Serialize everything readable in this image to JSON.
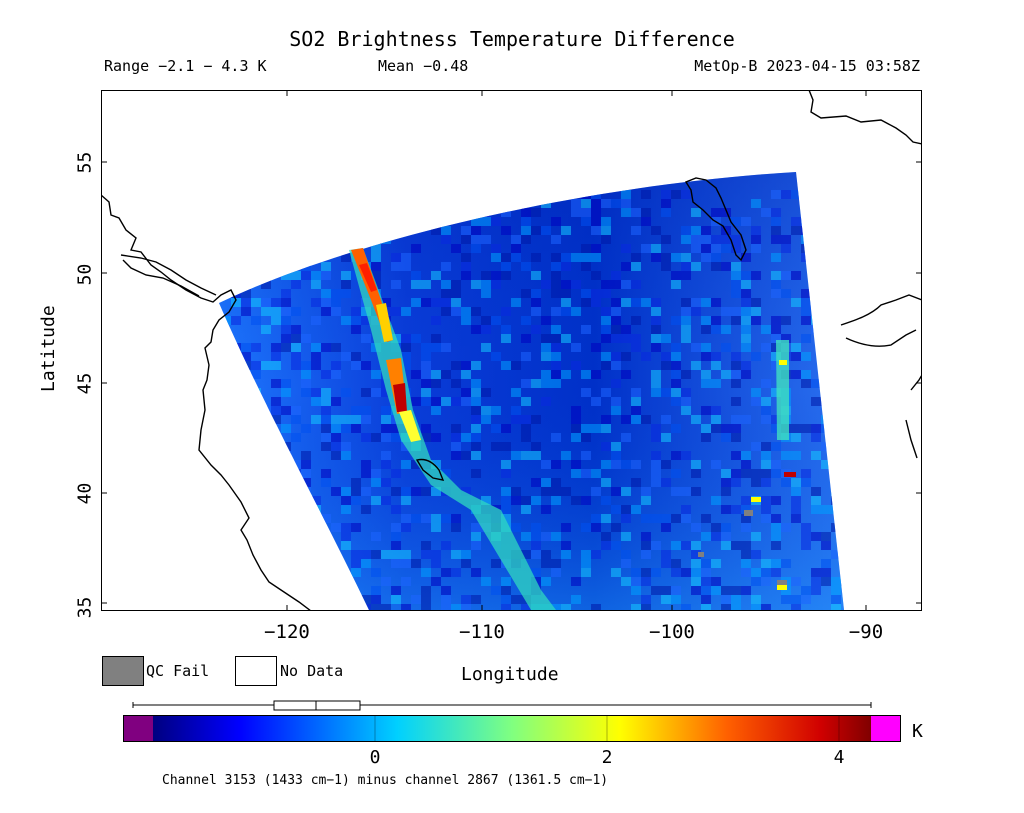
{
  "header": {
    "title": "SO2 Brightness Temperature Difference",
    "range": "Range −2.1 − 4.3 K",
    "mean": "Mean −0.48",
    "satellite": "MetOp-B 2023-04-15 03:58Z"
  },
  "axes": {
    "xlabel": "Longitude",
    "ylabel": "Latitude",
    "xticks": [
      "−120",
      "−110",
      "−100",
      "−90"
    ],
    "yticks": [
      "35",
      "40",
      "45",
      "50",
      "55"
    ],
    "xlim": [
      -128,
      -87
    ],
    "ylim": [
      35,
      58
    ]
  },
  "legend": {
    "qc_fail": "QC Fail",
    "no_data": "No Data",
    "qc_color": "#808080",
    "no_data_color": "#ffffff"
  },
  "colorbar": {
    "ticks": [
      "0",
      "2",
      "4"
    ],
    "unit": "K",
    "min": -2.1,
    "max": 4.3,
    "low_color": "#800080",
    "high_color": "#ff00ff"
  },
  "footer": {
    "channel": "Channel 3153 (1433 cm−1) minus channel 2867 (1361.5 cm−1)"
  },
  "map": {
    "swath_color": "#1e5ae6",
    "plume_colors": [
      "#ffff00",
      "#ff8000",
      "#ff0000",
      "#40e0a0"
    ]
  }
}
